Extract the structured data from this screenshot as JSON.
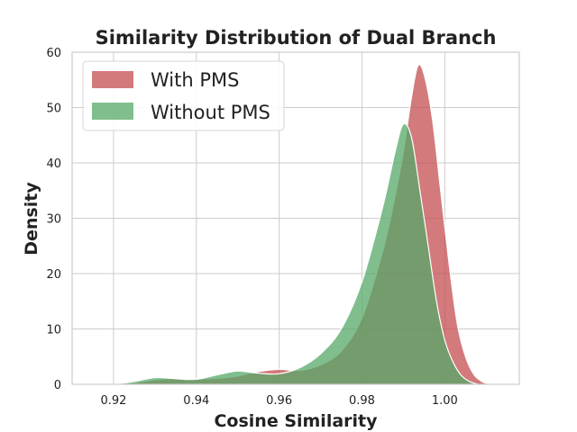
{
  "chart_data": {
    "type": "area",
    "title": "Similarity Distribution of Dual Branch",
    "xlabel": "Cosine Similarity",
    "ylabel": "Density",
    "xlim": [
      0.91,
      1.018
    ],
    "ylim": [
      0,
      60
    ],
    "xticks": [
      "0.92",
      "0.94",
      "0.96",
      "0.98",
      "1.00"
    ],
    "yticks": [
      "0",
      "10",
      "20",
      "30",
      "40",
      "50",
      "60"
    ],
    "grid": true,
    "legend": {
      "placement": "top-left",
      "entries": [
        "With PMS",
        "Without PMS"
      ]
    },
    "series": [
      {
        "name": "With PMS",
        "color": "#c44e52",
        "points": [
          [
            0.92,
            0
          ],
          [
            0.925,
            0.3
          ],
          [
            0.93,
            0.8
          ],
          [
            0.935,
            1.1
          ],
          [
            0.94,
            1.0
          ],
          [
            0.945,
            1.1
          ],
          [
            0.95,
            1.5
          ],
          [
            0.955,
            2.3
          ],
          [
            0.96,
            2.7
          ],
          [
            0.965,
            2.5
          ],
          [
            0.97,
            3.5
          ],
          [
            0.975,
            6.0
          ],
          [
            0.98,
            12.0
          ],
          [
            0.985,
            24.0
          ],
          [
            0.988,
            34.0
          ],
          [
            0.99,
            42.0
          ],
          [
            0.992,
            52.0
          ],
          [
            0.9935,
            57.5
          ],
          [
            0.995,
            56.0
          ],
          [
            0.997,
            48.0
          ],
          [
            0.999,
            35.0
          ],
          [
            1.001,
            22.0
          ],
          [
            1.003,
            11.0
          ],
          [
            1.005,
            5.0
          ],
          [
            1.007,
            1.8
          ],
          [
            1.009,
            0.5
          ],
          [
            1.011,
            0
          ]
        ]
      },
      {
        "name": "Without PMS",
        "color": "#55a868",
        "points": [
          [
            0.92,
            0
          ],
          [
            0.925,
            0.5
          ],
          [
            0.93,
            1.2
          ],
          [
            0.935,
            1.0
          ],
          [
            0.94,
            0.9
          ],
          [
            0.945,
            1.7
          ],
          [
            0.95,
            2.4
          ],
          [
            0.955,
            2.0
          ],
          [
            0.96,
            1.9
          ],
          [
            0.965,
            3.0
          ],
          [
            0.97,
            5.5
          ],
          [
            0.975,
            10.0
          ],
          [
            0.98,
            18.5
          ],
          [
            0.985,
            32.0
          ],
          [
            0.988,
            42.0
          ],
          [
            0.99,
            47.0
          ],
          [
            0.992,
            44.5
          ],
          [
            0.994,
            35.0
          ],
          [
            0.996,
            25.0
          ],
          [
            0.998,
            15.0
          ],
          [
            1.0,
            8.0
          ],
          [
            1.002,
            4.0
          ],
          [
            1.004,
            1.6
          ],
          [
            1.006,
            0.5
          ],
          [
            1.008,
            0
          ]
        ]
      }
    ]
  }
}
